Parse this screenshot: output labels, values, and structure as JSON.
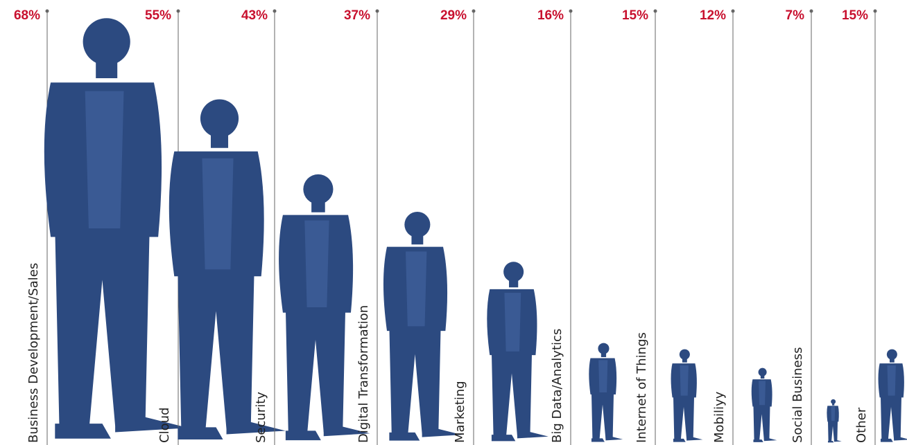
{
  "chart_data": {
    "type": "people",
    "categories": [
      "Business Development/Sales",
      "Cloud",
      "Security",
      "Digital Transformation",
      "Marketing",
      "Big Data/Analytics",
      "Internet of Things",
      "Mobiliyy",
      "Social Business",
      "Other"
    ],
    "values": [
      68,
      55,
      43,
      37,
      29,
      16,
      15,
      12,
      7,
      15
    ],
    "value_labels": [
      "68%",
      "55%",
      "43%",
      "37%",
      "29%",
      "16%",
      "15%",
      "12%",
      "7%",
      "15%"
    ],
    "color": "#2c4a80"
  }
}
